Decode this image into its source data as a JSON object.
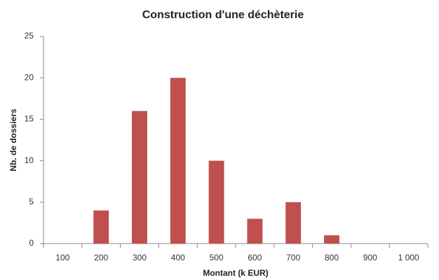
{
  "chart_data": {
    "type": "bar",
    "title": "Construction d'une déchèterie",
    "x_label": "Montant (k EUR)",
    "y_label": "Nb. de dossiers",
    "categories": [
      "100",
      "200",
      "300",
      "400",
      "500",
      "600",
      "700",
      "800",
      "900",
      "1 000"
    ],
    "values": [
      0,
      4,
      16,
      20,
      10,
      3,
      5,
      1,
      0,
      0
    ],
    "color": "#c0504d",
    "ylim": [
      0,
      25
    ],
    "yticks": [
      0,
      5,
      10,
      15,
      20,
      25
    ],
    "grid": false
  }
}
